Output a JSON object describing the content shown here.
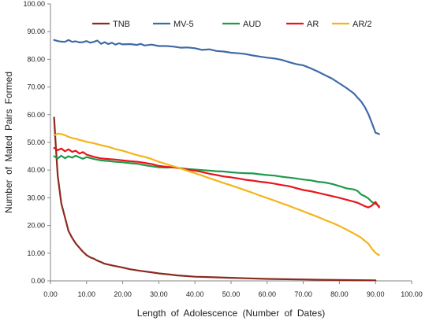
{
  "chart_data": {
    "type": "line",
    "xlabel": "Length  of  Adolescence  (Number of Dates)",
    "ylabel": "Number  of  Mated  Pairs  Formed",
    "xlim": [
      0,
      100
    ],
    "ylim": [
      0,
      100
    ],
    "x_ticks": [
      "0.00",
      "10.00",
      "20.00",
      "30.00",
      "40.00",
      "50.00",
      "60.00",
      "70.00",
      "80.00",
      "90.00",
      "100.00"
    ],
    "y_ticks": [
      "0.00",
      "10.00",
      "20.00",
      "30.00",
      "40.00",
      "50.00",
      "60.00",
      "70.00",
      "80.00",
      "90.00",
      "100.00"
    ],
    "grid": false,
    "legend_position": "top",
    "series": [
      {
        "name": "TNB",
        "color": "#8b2a1f",
        "points": [
          [
            1,
            59
          ],
          [
            1.5,
            48
          ],
          [
            2,
            38
          ],
          [
            3,
            28
          ],
          [
            4,
            23
          ],
          [
            5,
            18
          ],
          [
            6,
            15.5
          ],
          [
            7,
            13.5
          ],
          [
            8,
            12
          ],
          [
            9,
            10.5
          ],
          [
            10,
            9.3
          ],
          [
            11,
            8.5
          ],
          [
            12,
            8
          ],
          [
            13,
            7.3
          ],
          [
            14,
            6.8
          ],
          [
            15,
            6.2
          ],
          [
            17,
            5.6
          ],
          [
            20,
            4.8
          ],
          [
            22,
            4.2
          ],
          [
            25,
            3.6
          ],
          [
            28,
            3.1
          ],
          [
            30,
            2.7
          ],
          [
            33,
            2.3
          ],
          [
            35,
            2
          ],
          [
            38,
            1.7
          ],
          [
            40,
            1.5
          ],
          [
            45,
            1.3
          ],
          [
            50,
            1.1
          ],
          [
            55,
            0.9
          ],
          [
            60,
            0.7
          ],
          [
            65,
            0.6
          ],
          [
            70,
            0.5
          ],
          [
            75,
            0.4
          ],
          [
            80,
            0.3
          ],
          [
            85,
            0.25
          ],
          [
            90,
            0.2
          ]
        ]
      },
      {
        "name": "MV-5",
        "color": "#3f6aa8",
        "points": [
          [
            1,
            87
          ],
          [
            2,
            86.6
          ],
          [
            3,
            86.4
          ],
          [
            4,
            86.3
          ],
          [
            5,
            87
          ],
          [
            6,
            86.3
          ],
          [
            7,
            86.5
          ],
          [
            8,
            86.1
          ],
          [
            9,
            86.2
          ],
          [
            10,
            86.6
          ],
          [
            11,
            86
          ],
          [
            12,
            86.3
          ],
          [
            13,
            86.8
          ],
          [
            14,
            85.6
          ],
          [
            15,
            86.2
          ],
          [
            16,
            85.5
          ],
          [
            17,
            86
          ],
          [
            18,
            85.3
          ],
          [
            19,
            85.8
          ],
          [
            20,
            85.4
          ],
          [
            22,
            85.5
          ],
          [
            24,
            85.2
          ],
          [
            25,
            85.6
          ],
          [
            26,
            85
          ],
          [
            28,
            85.3
          ],
          [
            30,
            84.8
          ],
          [
            32,
            84.8
          ],
          [
            34,
            84.6
          ],
          [
            36,
            84.2
          ],
          [
            38,
            84.3
          ],
          [
            40,
            84
          ],
          [
            42,
            83.4
          ],
          [
            44,
            83.6
          ],
          [
            46,
            83
          ],
          [
            48,
            82.8
          ],
          [
            50,
            82.4
          ],
          [
            52,
            82.2
          ],
          [
            54,
            81.9
          ],
          [
            56,
            81.4
          ],
          [
            58,
            81
          ],
          [
            60,
            80.6
          ],
          [
            62,
            80.3
          ],
          [
            64,
            79.8
          ],
          [
            66,
            79
          ],
          [
            68,
            78.3
          ],
          [
            70,
            77.8
          ],
          [
            72,
            76.8
          ],
          [
            74,
            75.6
          ],
          [
            76,
            74.3
          ],
          [
            78,
            73
          ],
          [
            80,
            71.3
          ],
          [
            82,
            69.6
          ],
          [
            84,
            67.7
          ],
          [
            85,
            66.2
          ],
          [
            86,
            64.8
          ],
          [
            87,
            62.8
          ],
          [
            88,
            60.3
          ],
          [
            89,
            57
          ],
          [
            90,
            53.5
          ],
          [
            91,
            53
          ]
        ]
      },
      {
        "name": "AUD",
        "color": "#1f9a4a",
        "points": [
          [
            1,
            45
          ],
          [
            2,
            44.2
          ],
          [
            3,
            45.2
          ],
          [
            4,
            44.3
          ],
          [
            5,
            45
          ],
          [
            6,
            44.5
          ],
          [
            7,
            45.2
          ],
          [
            8,
            44.6
          ],
          [
            9,
            44.1
          ],
          [
            10,
            44.7
          ],
          [
            12,
            44
          ],
          [
            14,
            43.5
          ],
          [
            16,
            43.3
          ],
          [
            18,
            43
          ],
          [
            20,
            42.8
          ],
          [
            22,
            42.5
          ],
          [
            24,
            42.3
          ],
          [
            26,
            41.8
          ],
          [
            28,
            41.4
          ],
          [
            30,
            41
          ],
          [
            32,
            40.9
          ],
          [
            34,
            41
          ],
          [
            36,
            40.7
          ],
          [
            38,
            40.4
          ],
          [
            40,
            40.2
          ],
          [
            42,
            40
          ],
          [
            44,
            39.8
          ],
          [
            46,
            39.6
          ],
          [
            48,
            39.5
          ],
          [
            50,
            39.2
          ],
          [
            52,
            39
          ],
          [
            54,
            38.9
          ],
          [
            56,
            38.8
          ],
          [
            58,
            38.5
          ],
          [
            60,
            38.2
          ],
          [
            62,
            38
          ],
          [
            64,
            37.6
          ],
          [
            66,
            37.3
          ],
          [
            68,
            37
          ],
          [
            70,
            36.6
          ],
          [
            72,
            36.3
          ],
          [
            74,
            35.8
          ],
          [
            76,
            35.5
          ],
          [
            78,
            35
          ],
          [
            80,
            34.2
          ],
          [
            82,
            33.4
          ],
          [
            84,
            33
          ],
          [
            85,
            32.5
          ],
          [
            86,
            31.2
          ],
          [
            87,
            30.6
          ],
          [
            88,
            29.8
          ],
          [
            89,
            28.5
          ],
          [
            90,
            27.8
          ],
          [
            91,
            27
          ]
        ]
      },
      {
        "name": "AR",
        "color": "#e8151b",
        "points": [
          [
            1,
            48
          ],
          [
            2,
            47.2
          ],
          [
            3,
            47.8
          ],
          [
            4,
            46.8
          ],
          [
            5,
            47.5
          ],
          [
            6,
            46.6
          ],
          [
            7,
            47
          ],
          [
            8,
            46
          ],
          [
            9,
            46.5
          ],
          [
            10,
            45.6
          ],
          [
            12,
            44.8
          ],
          [
            14,
            44.2
          ],
          [
            16,
            44
          ],
          [
            18,
            43.8
          ],
          [
            20,
            43.5
          ],
          [
            22,
            43.2
          ],
          [
            24,
            43
          ],
          [
            26,
            42.6
          ],
          [
            28,
            42.2
          ],
          [
            30,
            41.5
          ],
          [
            32,
            41.2
          ],
          [
            34,
            41
          ],
          [
            36,
            40.6
          ],
          [
            38,
            40.2
          ],
          [
            40,
            39.8
          ],
          [
            42,
            39.3
          ],
          [
            44,
            38.7
          ],
          [
            46,
            38.2
          ],
          [
            48,
            37.7
          ],
          [
            50,
            37.4
          ],
          [
            52,
            37
          ],
          [
            54,
            36.5
          ],
          [
            56,
            36.2
          ],
          [
            58,
            35.8
          ],
          [
            60,
            35.5
          ],
          [
            62,
            35.1
          ],
          [
            64,
            34.6
          ],
          [
            66,
            34.2
          ],
          [
            68,
            33.5
          ],
          [
            70,
            32.8
          ],
          [
            72,
            32.4
          ],
          [
            74,
            31.8
          ],
          [
            76,
            31.2
          ],
          [
            78,
            30.6
          ],
          [
            80,
            30
          ],
          [
            82,
            29.3
          ],
          [
            84,
            28.6
          ],
          [
            85,
            28.2
          ],
          [
            86,
            27.6
          ],
          [
            87,
            27
          ],
          [
            88,
            26.5
          ],
          [
            89,
            27.2
          ],
          [
            90,
            28.5
          ],
          [
            91,
            26.5
          ]
        ]
      },
      {
        "name": "AR/2",
        "color": "#f3b51a",
        "points": [
          [
            1,
            52.5
          ],
          [
            2,
            53.2
          ],
          [
            3,
            53
          ],
          [
            4,
            52.6
          ],
          [
            5,
            52
          ],
          [
            6,
            51.6
          ],
          [
            7,
            51.3
          ],
          [
            8,
            50.9
          ],
          [
            9,
            50.6
          ],
          [
            10,
            50.2
          ],
          [
            12,
            49.7
          ],
          [
            14,
            49
          ],
          [
            16,
            48.4
          ],
          [
            18,
            47.6
          ],
          [
            20,
            47
          ],
          [
            22,
            46.2
          ],
          [
            24,
            45.4
          ],
          [
            26,
            44.8
          ],
          [
            28,
            44
          ],
          [
            30,
            43
          ],
          [
            32,
            42.2
          ],
          [
            34,
            41.4
          ],
          [
            36,
            40.6
          ],
          [
            38,
            39.7
          ],
          [
            40,
            38.9
          ],
          [
            42,
            38
          ],
          [
            44,
            37.1
          ],
          [
            46,
            36.2
          ],
          [
            48,
            35.3
          ],
          [
            50,
            34.5
          ],
          [
            52,
            33.6
          ],
          [
            54,
            32.7
          ],
          [
            56,
            31.8
          ],
          [
            58,
            30.8
          ],
          [
            60,
            29.9
          ],
          [
            62,
            29
          ],
          [
            64,
            28
          ],
          [
            66,
            27.1
          ],
          [
            68,
            26.1
          ],
          [
            70,
            25.1
          ],
          [
            72,
            24.1
          ],
          [
            74,
            23.1
          ],
          [
            76,
            22
          ],
          [
            78,
            21
          ],
          [
            80,
            19.8
          ],
          [
            82,
            18.5
          ],
          [
            84,
            17.1
          ],
          [
            86,
            15.6
          ],
          [
            87,
            14.5
          ],
          [
            88,
            13.5
          ],
          [
            89,
            11.6
          ],
          [
            90,
            10.1
          ],
          [
            91,
            9.3
          ]
        ]
      }
    ]
  }
}
